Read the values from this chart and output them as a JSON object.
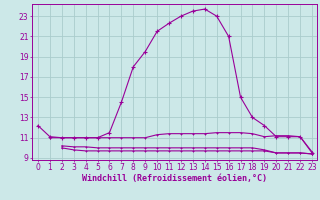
{
  "background_color": "#cce8e8",
  "grid_color": "#aacccc",
  "line_color": "#990099",
  "xlabel": "Windchill (Refroidissement éolien,°C)",
  "xlim": [
    -0.5,
    23.4
  ],
  "ylim": [
    8.8,
    24.2
  ],
  "yticks": [
    9,
    11,
    13,
    15,
    17,
    19,
    21,
    23
  ],
  "xticks": [
    0,
    1,
    2,
    3,
    4,
    5,
    6,
    7,
    8,
    9,
    10,
    11,
    12,
    13,
    14,
    15,
    16,
    17,
    18,
    19,
    20,
    21,
    22,
    23
  ],
  "series_main_x": [
    0,
    1,
    2,
    3,
    4,
    5,
    6,
    7,
    8,
    9,
    10,
    11,
    12,
    13,
    14,
    15,
    16,
    17,
    18,
    19,
    20,
    21,
    22,
    23
  ],
  "series_main_y": [
    12.2,
    11.1,
    11.0,
    11.0,
    11.0,
    11.0,
    11.5,
    14.5,
    18.0,
    19.5,
    21.5,
    22.3,
    23.0,
    23.5,
    23.7,
    23.0,
    21.0,
    15.0,
    13.0,
    12.2,
    11.1,
    11.1,
    11.1,
    9.5
  ],
  "series_flat1_x": [
    1,
    2,
    3,
    4,
    5,
    6,
    7,
    8,
    9,
    10,
    11,
    12,
    13,
    14,
    15,
    16,
    17,
    18,
    19,
    20,
    21,
    22,
    23
  ],
  "series_flat1_y": [
    11.0,
    11.0,
    11.0,
    11.0,
    11.0,
    11.0,
    11.0,
    11.0,
    11.0,
    11.3,
    11.4,
    11.4,
    11.4,
    11.4,
    11.5,
    11.5,
    11.5,
    11.4,
    11.1,
    11.2,
    11.2,
    11.1,
    9.6
  ],
  "series_flat2_x": [
    2,
    3,
    4,
    5,
    6,
    7,
    8,
    9,
    10,
    11,
    12,
    13,
    14,
    15,
    16,
    17,
    18,
    19,
    20,
    21,
    22,
    23
  ],
  "series_flat2_y": [
    10.2,
    10.1,
    10.1,
    10.0,
    10.0,
    10.0,
    10.0,
    10.0,
    10.0,
    10.0,
    10.0,
    10.0,
    10.0,
    10.0,
    10.0,
    10.0,
    10.0,
    9.8,
    9.5,
    9.5,
    9.5,
    9.4
  ],
  "series_flat3_x": [
    2,
    3,
    4,
    5,
    6,
    7,
    8,
    9,
    10,
    11,
    12,
    13,
    14,
    15,
    16,
    17,
    18,
    19,
    20,
    21,
    22,
    23
  ],
  "series_flat3_y": [
    10.0,
    9.8,
    9.7,
    9.7,
    9.7,
    9.7,
    9.7,
    9.7,
    9.7,
    9.7,
    9.7,
    9.7,
    9.7,
    9.7,
    9.7,
    9.7,
    9.7,
    9.7,
    9.5,
    9.5,
    9.5,
    9.4
  ],
  "font_size_ticks": 5.5,
  "font_size_label": 6.0,
  "linewidth": 0.8,
  "markersize": 2.5
}
